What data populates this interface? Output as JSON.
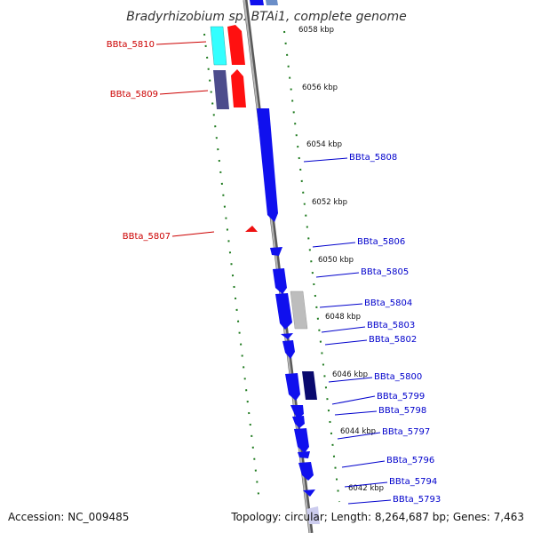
{
  "title": "Bradyrhizobium sp. BTAi1, complete genome",
  "footer": {
    "accession": "Accession: NC_009485",
    "topology": "Topology: circular; Length: 8,264,687 bp; Genes: 7,463"
  },
  "colors": {
    "backbone": "#8a8a8a",
    "tick": "#1e7a1e",
    "forward_label": "#0000cc",
    "reverse_label": "#cc0000"
  },
  "kbp_markers": [
    "6058 kbp",
    "6056 kbp",
    "6054 kbp",
    "6052 kbp",
    "6050 kbp",
    "6048 kbp",
    "6046 kbp",
    "6044 kbp",
    "6042 kbp"
  ],
  "reverse_genes": [
    {
      "label": "BBta_5810"
    },
    {
      "label": "BBta_5809"
    },
    {
      "label": "BBta_5807"
    }
  ],
  "forward_genes": [
    {
      "label": "BBta_5808"
    },
    {
      "label": "BBta_5806"
    },
    {
      "label": "BBta_5805"
    },
    {
      "label": "BBta_5804"
    },
    {
      "label": "BBta_5803"
    },
    {
      "label": "BBta_5802"
    },
    {
      "label": "BBta_5800"
    },
    {
      "label": "BBta_5799"
    },
    {
      "label": "BBta_5798"
    },
    {
      "label": "BBta_5797"
    },
    {
      "label": "BBta_5796"
    },
    {
      "label": "BBta_5794"
    },
    {
      "label": "BBta_5793"
    }
  ]
}
